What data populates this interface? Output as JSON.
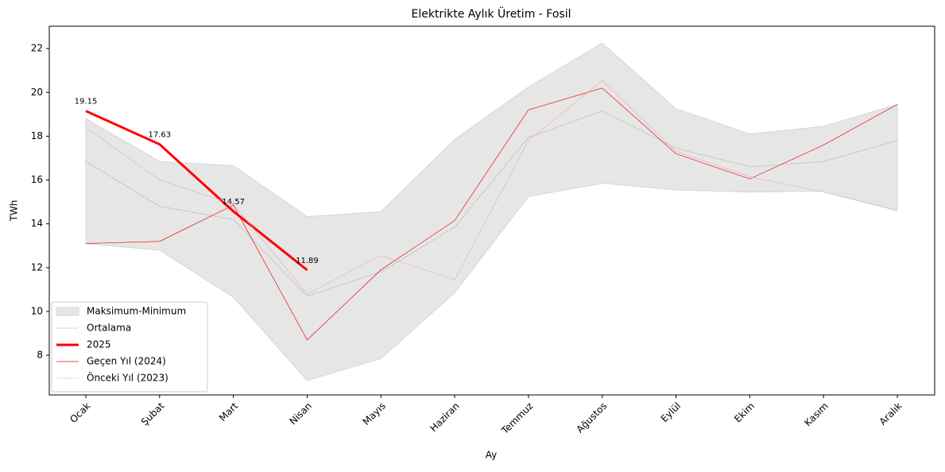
{
  "chart_data": {
    "type": "line",
    "title": "Elektrikte Aylık Üretim - Fosil",
    "xlabel": "Ay",
    "ylabel": "TWh",
    "categories": [
      "Ocak",
      "Şubat",
      "Mart",
      "Nisan",
      "Mayıs",
      "Haziran",
      "Temmuz",
      "Ağustos",
      "Eylül",
      "Ekim",
      "Kasım",
      "Aralık"
    ],
    "band": {
      "name": "Maksimum-Minimum",
      "color": "#e6e6e6",
      "upper": [
        18.8,
        16.85,
        16.65,
        14.33,
        14.55,
        17.85,
        20.25,
        22.25,
        19.25,
        18.1,
        18.45,
        19.45
      ],
      "lower": [
        13.1,
        12.8,
        10.65,
        6.85,
        7.85,
        10.85,
        15.25,
        15.85,
        15.55,
        15.45,
        15.5,
        14.6
      ]
    },
    "series": [
      {
        "name": "Ortalama",
        "color": "#a0a0a0",
        "width": 1,
        "dash": "1.5 2",
        "values": [
          16.85,
          14.8,
          14.2,
          10.7,
          11.8,
          13.85,
          17.95,
          19.15,
          17.45,
          16.6,
          16.85,
          17.8
        ]
      },
      {
        "name": "2025",
        "color": "#ff0000",
        "width": 3,
        "values": [
          19.15,
          17.63,
          14.57,
          11.89,
          null,
          null,
          null,
          null,
          null,
          null,
          null,
          null
        ],
        "labeled": true
      },
      {
        "name": "Geçen Yıl (2024)",
        "color": "#ee1111",
        "width": 0.7,
        "values": [
          13.1,
          13.2,
          14.85,
          8.7,
          11.9,
          14.15,
          19.2,
          20.2,
          17.2,
          16.05,
          17.6,
          19.45
        ]
      },
      {
        "name": "Önceki Yıl (2023)",
        "color": "#f0a8a8",
        "width": 0.6,
        "values": [
          18.4,
          16.0,
          14.9,
          10.8,
          12.55,
          11.45,
          17.8,
          20.55,
          17.3,
          16.15,
          15.45,
          14.6
        ]
      }
    ],
    "ylim": [
      6.19,
      23.02
    ],
    "yticks": [
      8,
      10,
      12,
      14,
      16,
      18,
      20,
      22
    ],
    "legend": "lower left"
  }
}
